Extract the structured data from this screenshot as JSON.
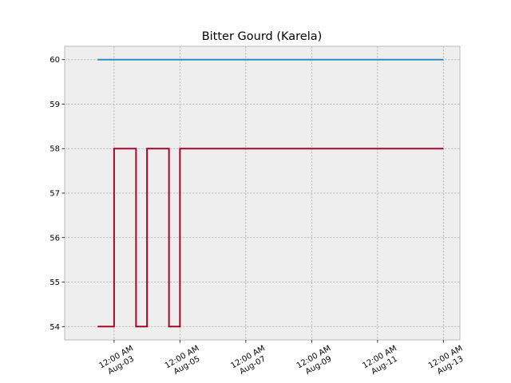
{
  "chart_data": {
    "type": "line",
    "title": "Bitter Gourd (Karela)",
    "xlabel": "",
    "ylabel": "",
    "x_axis": "datetime",
    "xlim": [
      "2023-08-01T12:00",
      "2023-08-13T12:00"
    ],
    "ylim": [
      53.7,
      60.3
    ],
    "y_ticks": [
      54,
      55,
      56,
      57,
      58,
      59,
      60
    ],
    "x_ticks": [
      {
        "value": "2023-08-03T00:00",
        "label_line1": "12:00 AM",
        "label_line2": "Aug-03"
      },
      {
        "value": "2023-08-05T00:00",
        "label_line1": "12:00 AM",
        "label_line2": "Aug-05"
      },
      {
        "value": "2023-08-07T00:00",
        "label_line1": "12:00 AM",
        "label_line2": "Aug-07"
      },
      {
        "value": "2023-08-09T00:00",
        "label_line1": "12:00 AM",
        "label_line2": "Aug-09"
      },
      {
        "value": "2023-08-11T00:00",
        "label_line1": "12:00 AM",
        "label_line2": "Aug-11"
      },
      {
        "value": "2023-08-13T00:00",
        "label_line1": "12:00 AM",
        "label_line2": "Aug-13"
      }
    ],
    "grid": true,
    "step": "post",
    "series": [
      {
        "color": "#348ABD",
        "points": [
          {
            "x": "2023-08-02T12:00",
            "y": 60
          },
          {
            "x": "2023-08-13T00:00",
            "y": 60
          }
        ]
      },
      {
        "color": "#A60628",
        "points": [
          {
            "x": "2023-08-02T12:00",
            "y": 54
          },
          {
            "x": "2023-08-03T00:00",
            "y": 58
          },
          {
            "x": "2023-08-03T16:00",
            "y": 54
          },
          {
            "x": "2023-08-03T23:00",
            "y": 54
          },
          {
            "x": "2023-08-04T00:00",
            "y": 58
          },
          {
            "x": "2023-08-04T16:00",
            "y": 54
          },
          {
            "x": "2023-08-04T23:00",
            "y": 54
          },
          {
            "x": "2023-08-05T00:00",
            "y": 58
          },
          {
            "x": "2023-08-13T00:00",
            "y": 58
          }
        ]
      }
    ],
    "colors": {
      "axes_bg": "#EEEEEE",
      "grid": "#B2B2B2",
      "spine": "#BCBCBC"
    }
  }
}
